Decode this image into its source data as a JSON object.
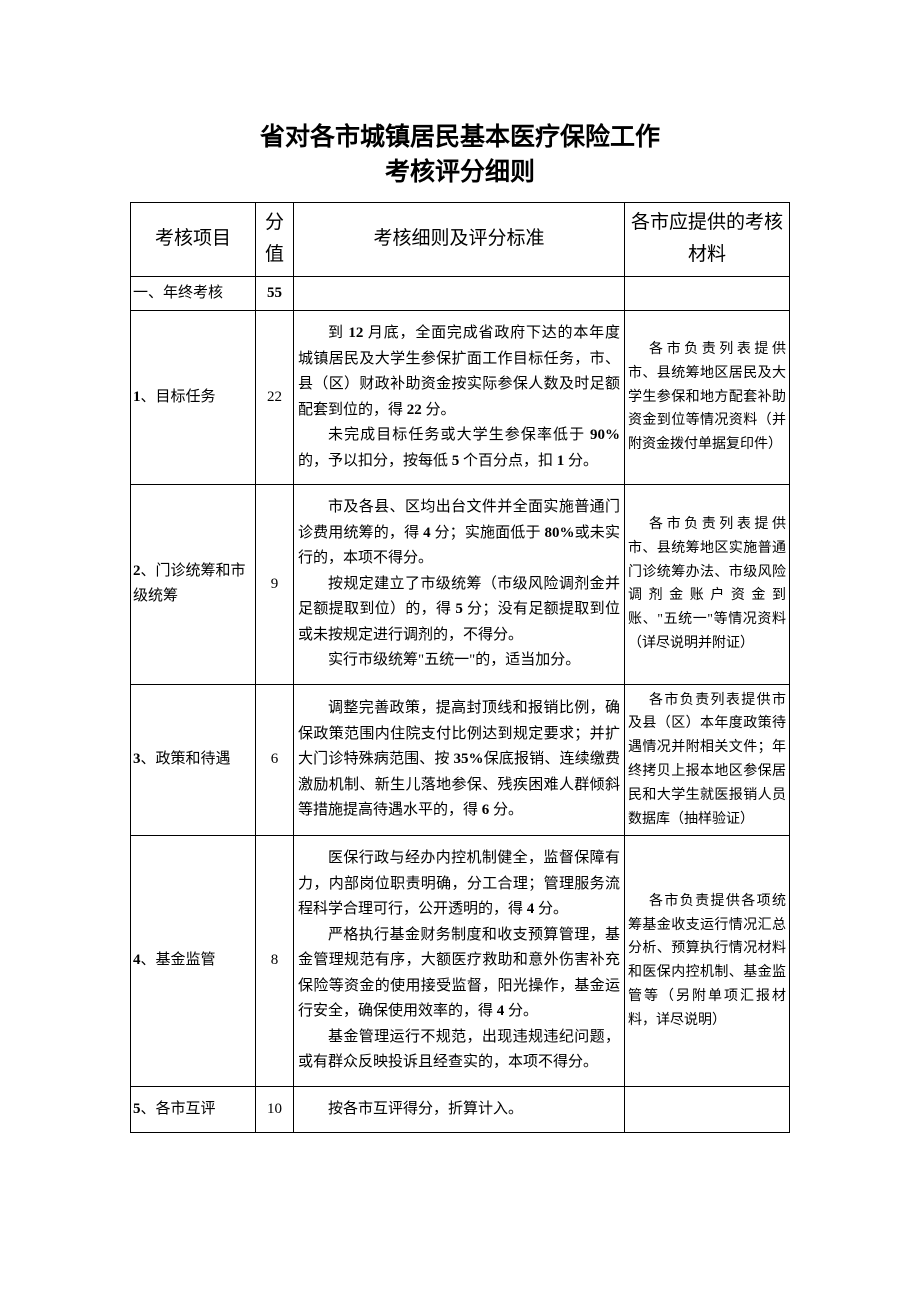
{
  "title_line1": "省对各市城镇居民基本医疗保险工作",
  "title_line2": "考核评分细则",
  "title_fontsize": "25px",
  "headers": {
    "item": "考核项目",
    "score": "分值",
    "detail": "考核细则及评分标准",
    "material": "各市应提供的考核材料"
  },
  "section": {
    "label": "一、年终考核",
    "score": "55"
  },
  "rows": [
    {
      "label_prefix": "1",
      "label_text": "、目标任务",
      "score": "22",
      "detail_paras": [
        "到 12 月底，全面完成省政府下达的本年度城镇居民及大学生参保扩面工作目标任务，市、县（区）财政补助资金按实际参保人数及时足额配套到位的，得 22 分。",
        "未完成目标任务或大学生参保率低于 90%的，予以扣分，按每低 5 个百分点，扣 1 分。"
      ],
      "material": "各市负责列表提供市、县统筹地区居民及大学生参保和地方配套补助资金到位等情况资料（并附资金拨付单据复印件）"
    },
    {
      "label_prefix": "2",
      "label_text": "、门诊统筹和市级统筹",
      "score": "9",
      "detail_paras": [
        "市及各县、区均出台文件并全面实施普通门诊费用统筹的，得 4 分；实施面低于 80%或未实行的，本项不得分。",
        "按规定建立了市级统筹（市级风险调剂金并足额提取到位）的，得 5 分；没有足额提取到位或未按规定进行调剂的，不得分。",
        "实行市级统筹\"五统一\"的，适当加分。"
      ],
      "material": "各市负责列表提供市、县统筹地区实施普通门诊统筹办法、市级风险调剂金账户资金到账、\"五统一\"等情况资料（详尽说明并附证）"
    },
    {
      "label_prefix": "3",
      "label_text": "、政策和待遇",
      "score": "6",
      "detail_paras": [
        "调整完善政策，提高封顶线和报销比例，确保政策范围内住院支付比例达到规定要求；并扩大门诊特殊病范围、按 35%保底报销、连续缴费激励机制、新生儿落地参保、残疾困难人群倾斜等措施提高待遇水平的，得 6 分。"
      ],
      "material": "各市负责列表提供市及县（区）本年度政策待遇情况并附相关文件；年终拷贝上报本地区参保居民和大学生就医报销人员数据库（抽样验证）"
    },
    {
      "label_prefix": "4",
      "label_text": "、基金监管",
      "score": "8",
      "detail_paras": [
        "医保行政与经办内控机制健全，监督保障有力，内部岗位职责明确，分工合理；管理服务流程科学合理可行，公开透明的，得 4 分。",
        "严格执行基金财务制度和收支预算管理，基金管理规范有序，大额医疗救助和意外伤害补充保险等资金的使用接受监督，阳光操作，基金运行安全，确保使用效率的，得 4 分。",
        "基金管理运行不规范，出现违规违纪问题，或有群众反映投诉且经查实的，本项不得分。"
      ],
      "material": "各市负责提供各项统筹基金收支运行情况汇总分析、预算执行情况材料和医保内控机制、基金监管等（另附单项汇报材料，详尽说明）"
    },
    {
      "label_prefix": "5",
      "label_text": "、各市互评",
      "score": "10",
      "detail_paras": [
        "按各市互评得分，折算计入。"
      ],
      "material": ""
    }
  ]
}
